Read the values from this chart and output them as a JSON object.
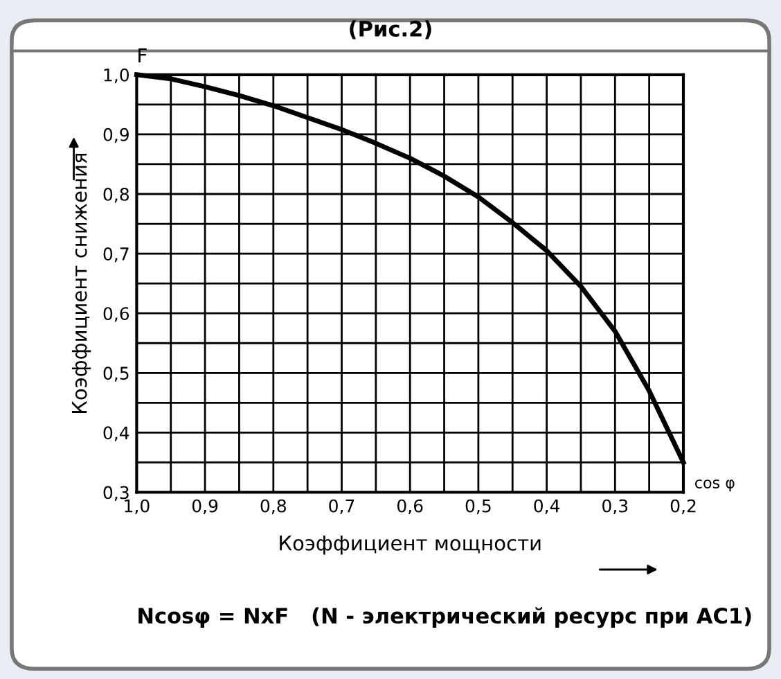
{
  "chart_data": {
    "type": "line",
    "title": "(Рис.2)",
    "xlabel": "Коэффициент мощности",
    "ylabel": "Коэффициент снижения",
    "annotations": [
      "F",
      "cos φ",
      "Ncosφ = NxF   (N - электрический ресурс при AC1)"
    ],
    "x": [
      1.0,
      0.95,
      0.9,
      0.85,
      0.8,
      0.75,
      0.7,
      0.65,
      0.6,
      0.55,
      0.5,
      0.45,
      0.4,
      0.35,
      0.3,
      0.25,
      0.2
    ],
    "series": [
      {
        "color": "#000000",
        "values": [
          1.0,
          0.993,
          0.98,
          0.965,
          0.948,
          0.928,
          0.908,
          0.885,
          0.86,
          0.83,
          0.795,
          0.752,
          0.705,
          0.645,
          0.57,
          0.47,
          0.35
        ]
      }
    ],
    "xlim": [
      1.0,
      0.2
    ],
    "ylim": [
      0.3,
      1.0
    ],
    "xticks": [
      {
        "value": 1.0,
        "label": "1,0"
      },
      {
        "value": 0.95,
        "label": null
      },
      {
        "value": 0.9,
        "label": "0,9"
      },
      {
        "value": 0.85,
        "label": null
      },
      {
        "value": 0.8,
        "label": "0,8"
      },
      {
        "value": 0.75,
        "label": null
      },
      {
        "value": 0.7,
        "label": "0,7"
      },
      {
        "value": 0.65,
        "label": null
      },
      {
        "value": 0.6,
        "label": "0,6"
      },
      {
        "value": 0.55,
        "label": null
      },
      {
        "value": 0.5,
        "label": "0,5"
      },
      {
        "value": 0.45,
        "label": null
      },
      {
        "value": 0.4,
        "label": "0,4"
      },
      {
        "value": 0.35,
        "label": null
      },
      {
        "value": 0.3,
        "label": "0,3"
      },
      {
        "value": 0.25,
        "label": null
      },
      {
        "value": 0.2,
        "label": "0,2"
      }
    ],
    "yticks": [
      {
        "value": 0.3,
        "label": "0,3"
      },
      {
        "value": 0.35,
        "label": null
      },
      {
        "value": 0.4,
        "label": "0,4"
      },
      {
        "value": 0.45,
        "label": null
      },
      {
        "value": 0.5,
        "label": "0,5"
      },
      {
        "value": 0.55,
        "label": null
      },
      {
        "value": 0.6,
        "label": "0,6"
      },
      {
        "value": 0.65,
        "label": null
      },
      {
        "value": 0.7,
        "label": "0,7"
      },
      {
        "value": 0.75,
        "label": null
      },
      {
        "value": 0.8,
        "label": "0,8"
      },
      {
        "value": 0.85,
        "label": null
      },
      {
        "value": 0.9,
        "label": "0,9"
      },
      {
        "value": 0.95,
        "label": null
      },
      {
        "value": 1.0,
        "label": "1,0"
      }
    ],
    "grid": true,
    "legend": false,
    "marker": "none",
    "line_style": "solid"
  }
}
